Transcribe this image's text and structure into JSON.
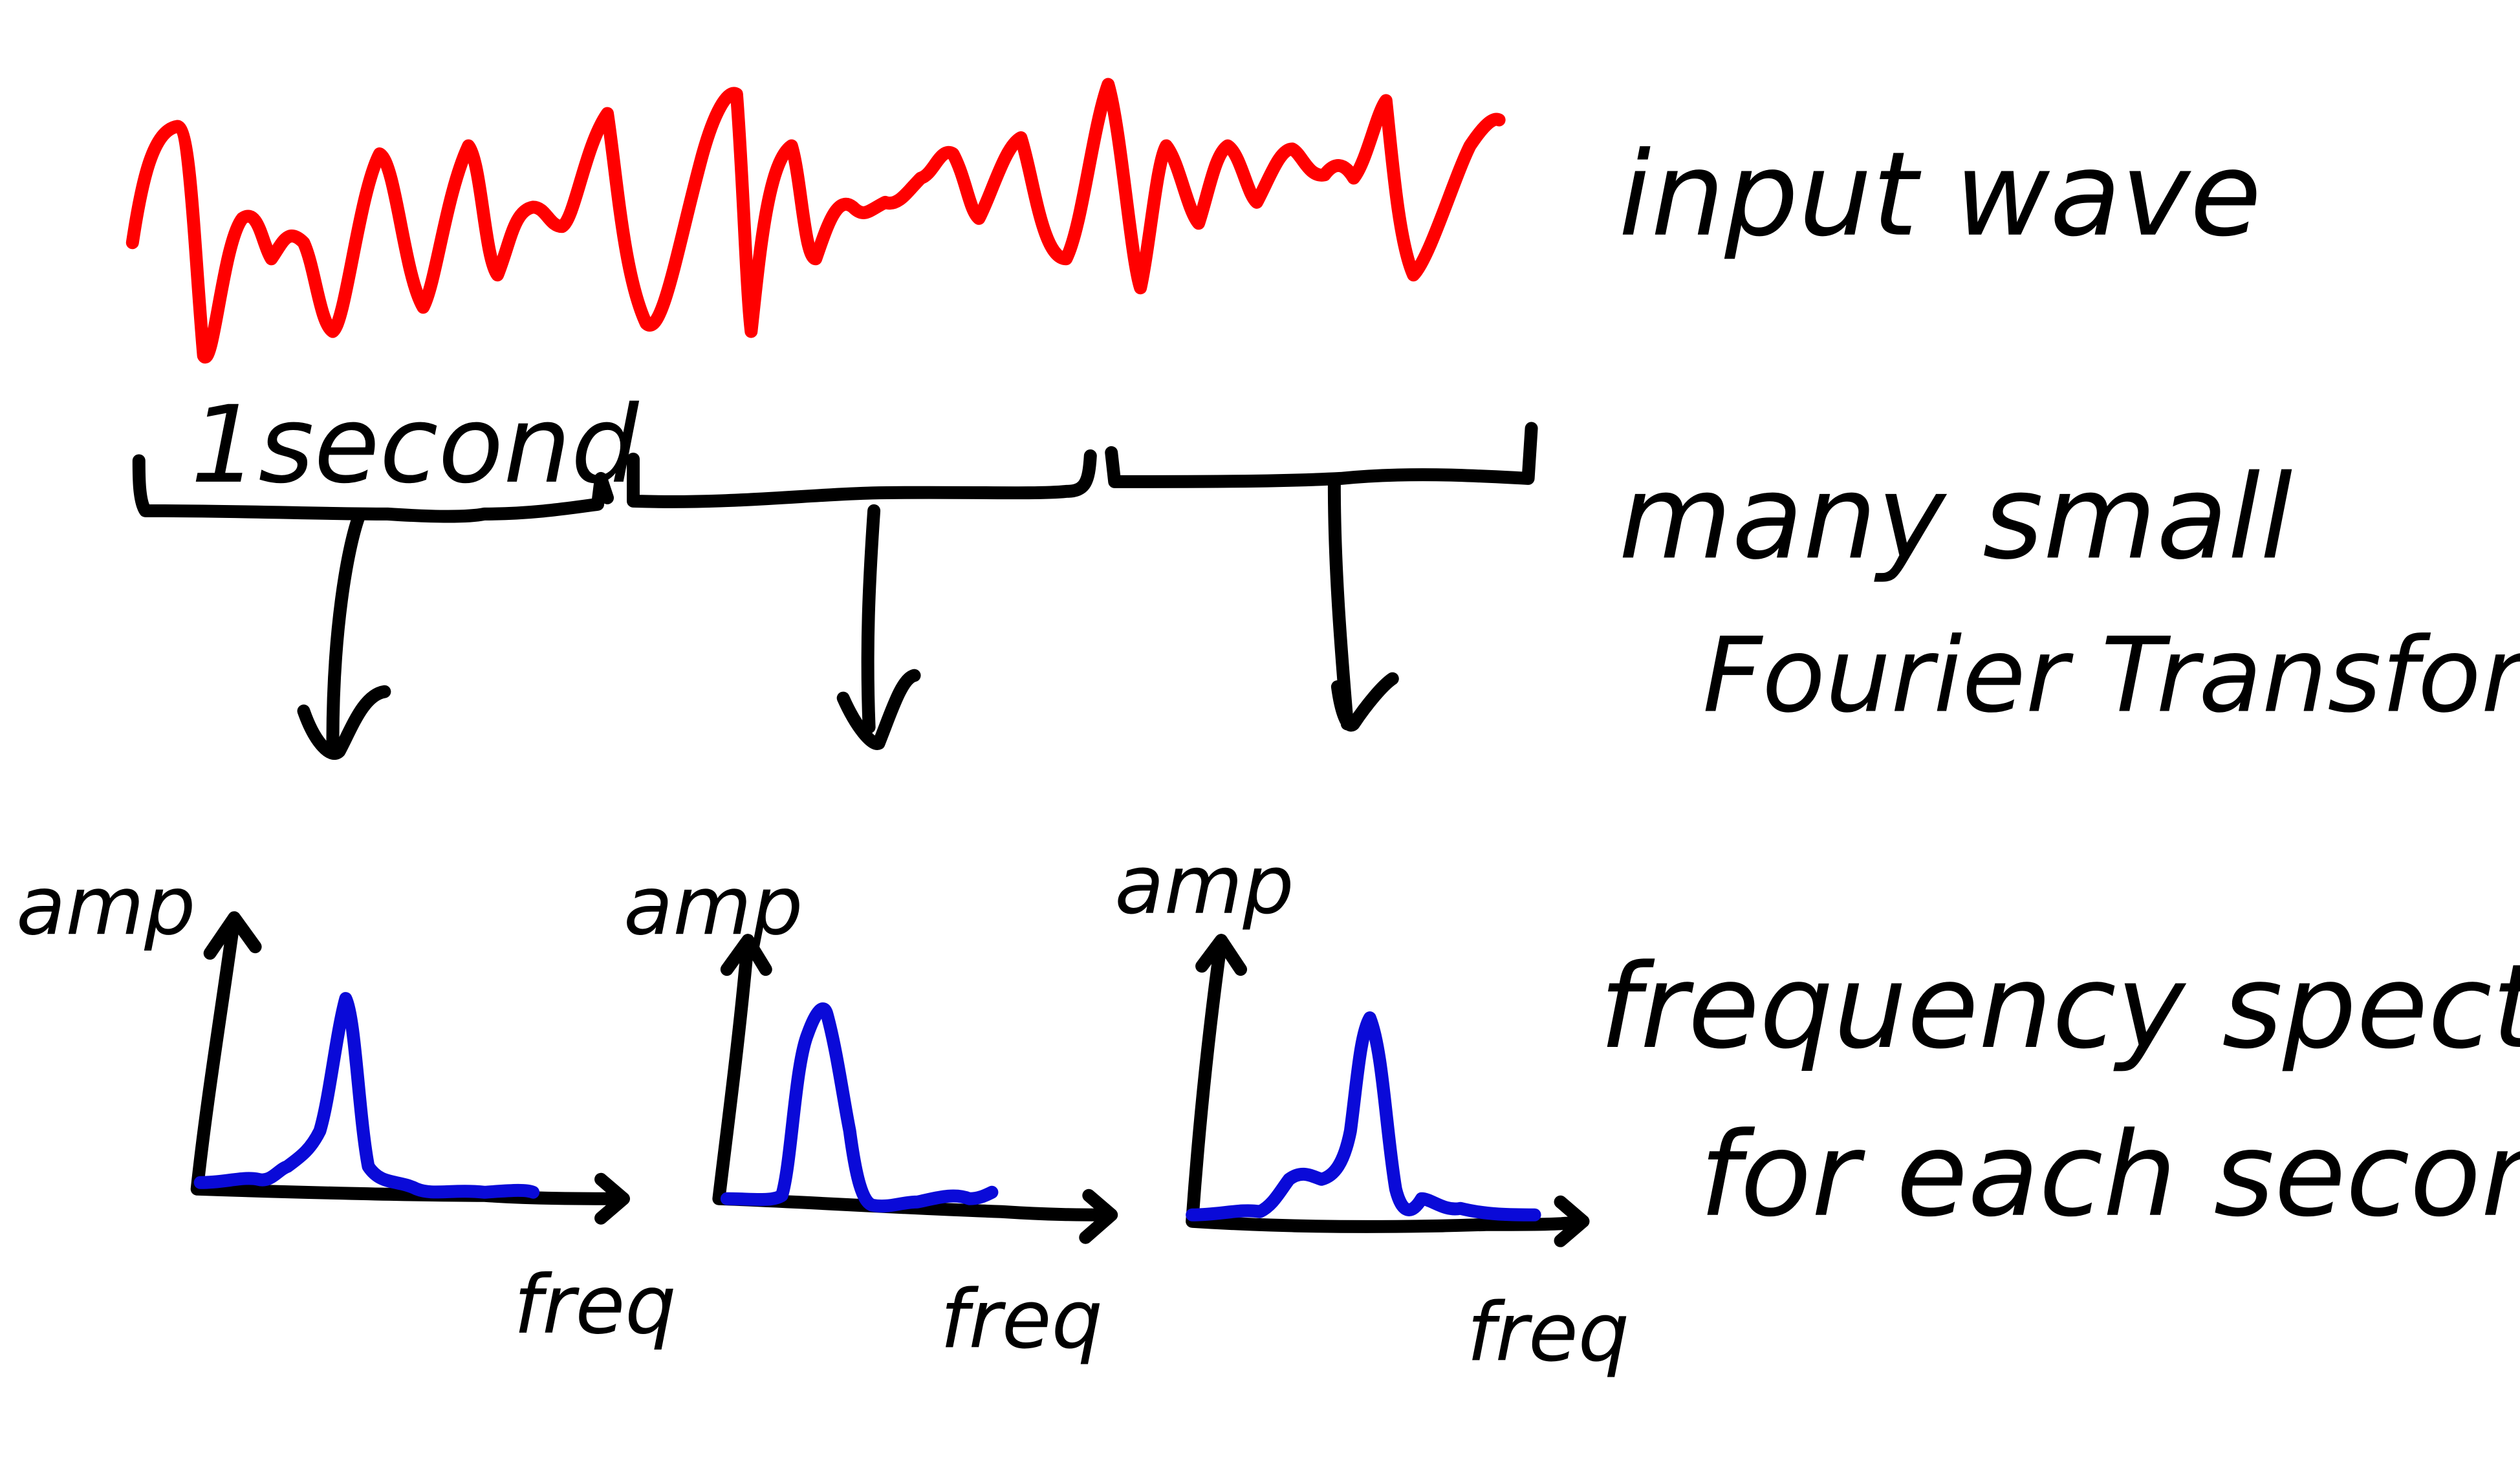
{
  "colors": {
    "wave": "#ff0000",
    "spectrum": "#0a0ad8",
    "ink": "#000000",
    "background": "#ffffff"
  },
  "labels": {
    "input_wave": "input wave",
    "window": "1second",
    "transforms_line1": "many small",
    "transforms_line2": "Fourier Transforms",
    "spectrum_line1": "frequency spectrum",
    "spectrum_line2": "for each second"
  },
  "plots": [
    {
      "y_label": "amp",
      "x_label": "freq"
    },
    {
      "y_label": "amp",
      "x_label": "freq"
    },
    {
      "y_label": "amp",
      "x_label": "freq"
    }
  ]
}
